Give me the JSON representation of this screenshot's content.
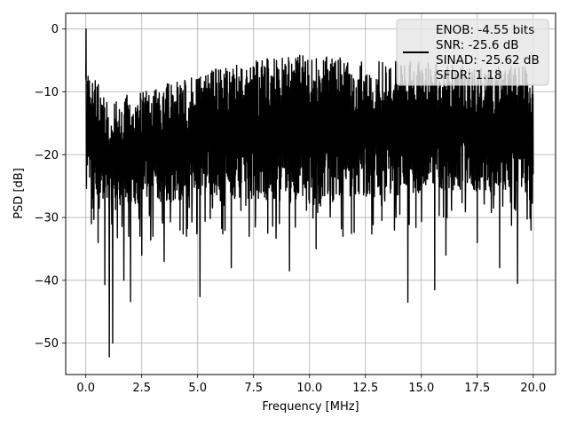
{
  "chart_data": {
    "type": "line",
    "title": "",
    "xlabel": "Frequency [MHz]",
    "ylabel": "PSD [dB]",
    "xlim": [
      -0.9,
      21.0
    ],
    "ylim": [
      -55,
      2.5
    ],
    "xticks": [
      0.0,
      2.5,
      5.0,
      7.5,
      10.0,
      12.5,
      15.0,
      17.5,
      20.0
    ],
    "xtick_labels": [
      "0.0",
      "2.5",
      "5.0",
      "7.5",
      "10.0",
      "12.5",
      "15.0",
      "17.5",
      "20.0"
    ],
    "yticks": [
      0,
      -10,
      -20,
      -30,
      -40,
      -50
    ],
    "ytick_labels": [
      "0",
      "−10",
      "−20",
      "−30",
      "−40",
      "−50"
    ],
    "grid": true,
    "legend_placement": "top-right",
    "series": [
      {
        "color": "#000000",
        "description": "dense noisy power spectral density trace from 0 to 20 MHz",
        "envelope": {
          "x": [
            0.0,
            1.0,
            2.5,
            5.0,
            7.5,
            10.0,
            12.5,
            15.0,
            17.5,
            20.0
          ],
          "upper": [
            -6,
            -11,
            -10,
            -7,
            -5,
            -4,
            -5,
            -5,
            -6,
            -6
          ],
          "lower": [
            -27,
            -27,
            -28,
            -27,
            -27,
            -28,
            -27,
            -26,
            -26,
            -26
          ]
        },
        "peak": {
          "x": 0.02,
          "y": 0.0
        },
        "dips": [
          {
            "x": 0.25,
            "y": -31
          },
          {
            "x": 0.55,
            "y": -34
          },
          {
            "x": 0.85,
            "y": -40.7
          },
          {
            "x": 1.05,
            "y": -52.2
          },
          {
            "x": 1.2,
            "y": -50
          },
          {
            "x": 1.7,
            "y": -40
          },
          {
            "x": 2.0,
            "y": -43.4
          },
          {
            "x": 2.5,
            "y": -36
          },
          {
            "x": 3.0,
            "y": -33
          },
          {
            "x": 3.5,
            "y": -37
          },
          {
            "x": 4.5,
            "y": -33
          },
          {
            "x": 5.1,
            "y": -42.6
          },
          {
            "x": 6.5,
            "y": -38
          },
          {
            "x": 7.3,
            "y": -33
          },
          {
            "x": 9.1,
            "y": -38.5
          },
          {
            "x": 10.3,
            "y": -35
          },
          {
            "x": 11.5,
            "y": -33
          },
          {
            "x": 13.8,
            "y": -32
          },
          {
            "x": 14.4,
            "y": -43.5
          },
          {
            "x": 15.6,
            "y": -41.5
          },
          {
            "x": 16.1,
            "y": -36
          },
          {
            "x": 17.5,
            "y": -34
          },
          {
            "x": 18.5,
            "y": -38
          },
          {
            "x": 19.3,
            "y": -40.5
          },
          {
            "x": 19.9,
            "y": -32
          }
        ]
      }
    ]
  },
  "legend": {
    "lines": [
      "ENOB: -4.55 bits",
      "SNR: -25.6 dB",
      "SINAD: -25.62 dB",
      "SFDR: 1.18"
    ]
  },
  "colors": {
    "line": "#000000",
    "grid": "#b0b0b0",
    "axes": "#000000",
    "legend_bg": "#e6e6e6"
  }
}
